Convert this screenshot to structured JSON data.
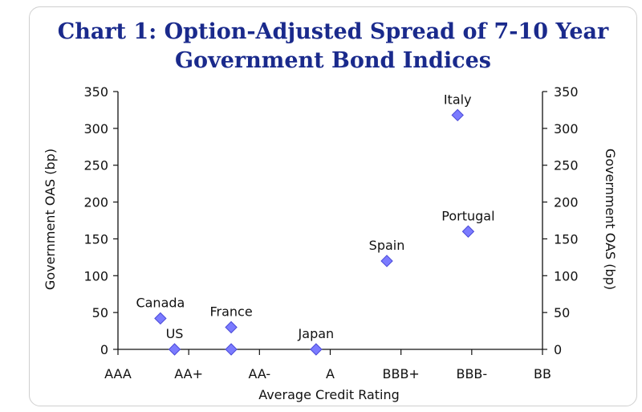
{
  "chart_data": {
    "type": "scatter",
    "title_line1": "Chart 1: Option-Adjusted Spread of 7-10 Year",
    "title_line2": "Government Bond Indices",
    "xlabel": "Average Credit Rating",
    "ylabel_left": "Government OAS (bp)",
    "ylabel_right": "Government OAS (bp)",
    "x_categories": [
      "AAA",
      "AA+",
      "AA-",
      "A",
      "BBB+",
      "BBB-",
      "BB"
    ],
    "ylim": [
      0,
      350
    ],
    "y_ticks": [
      0,
      50,
      100,
      150,
      200,
      250,
      300,
      350
    ],
    "grid": false,
    "marker": "diamond",
    "marker_color": "#7b7bff",
    "title_color": "#1a2a8c",
    "points": [
      {
        "label": "Canada",
        "x": 0.6,
        "y": 42
      },
      {
        "label": "US",
        "x": 0.8,
        "y": 0
      },
      {
        "label": "France",
        "x": 1.6,
        "y": 30
      },
      {
        "label": "France",
        "x": 1.6,
        "y": 0,
        "show_label": false
      },
      {
        "label": "Japan",
        "x": 2.8,
        "y": 0
      },
      {
        "label": "Spain",
        "x": 3.8,
        "y": 120
      },
      {
        "label": "Italy",
        "x": 4.8,
        "y": 318
      },
      {
        "label": "Portugal",
        "x": 4.95,
        "y": 160
      }
    ]
  }
}
